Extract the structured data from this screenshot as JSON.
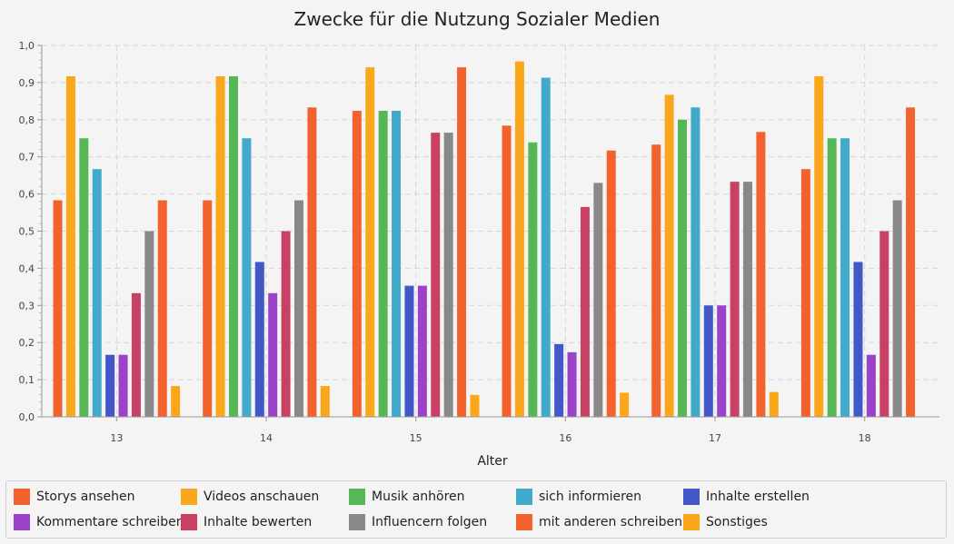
{
  "chart_data": {
    "type": "bar",
    "title": "Zwecke für die Nutzung Sozialer Medien",
    "xlabel": "Alter",
    "ylabel": "",
    "ylim": [
      0,
      1.0
    ],
    "yticks": [
      "0,0",
      "0,1",
      "0,2",
      "0,3",
      "0,4",
      "0,5",
      "0,6",
      "0,7",
      "0,8",
      "0,9",
      "1,0"
    ],
    "categories": [
      "13",
      "14",
      "15",
      "16",
      "17",
      "18"
    ],
    "grid": true,
    "legend_position": "bottom",
    "series": [
      {
        "name": "Storys ansehen",
        "color": "#f3622d",
        "values": [
          0.583,
          0.583,
          0.824,
          0.784,
          0.733,
          0.667
        ]
      },
      {
        "name": "Videos anschauen",
        "color": "#fba71b",
        "values": [
          0.917,
          0.917,
          0.941,
          0.957,
          0.867,
          0.917
        ]
      },
      {
        "name": "Musik anhören",
        "color": "#57b757",
        "values": [
          0.75,
          0.917,
          0.824,
          0.739,
          0.8,
          0.75
        ]
      },
      {
        "name": "sich informieren",
        "color": "#41a9c9",
        "values": [
          0.667,
          0.75,
          0.824,
          0.913,
          0.833,
          0.75
        ]
      },
      {
        "name": "Inhalte erstellen",
        "color": "#4258c9",
        "values": [
          0.167,
          0.417,
          0.353,
          0.196,
          0.3,
          0.417
        ]
      },
      {
        "name": "Kommentare schreiben",
        "color": "#9a42c8",
        "values": [
          0.167,
          0.333,
          0.353,
          0.174,
          0.3,
          0.167
        ]
      },
      {
        "name": "Inhalte bewerten",
        "color": "#c84164",
        "values": [
          0.333,
          0.5,
          0.765,
          0.565,
          0.633,
          0.5
        ]
      },
      {
        "name": "Influencern folgen",
        "color": "#888888",
        "values": [
          0.5,
          0.583,
          0.765,
          0.63,
          0.633,
          0.583
        ]
      },
      {
        "name": "mit anderen schreiben",
        "color": "#f3622d",
        "values": [
          0.583,
          0.833,
          0.941,
          0.717,
          0.767,
          0.833
        ]
      },
      {
        "name": "Sonstiges",
        "color": "#fba71b",
        "values": [
          0.083,
          0.083,
          0.059,
          0.065,
          0.067,
          0.0
        ]
      }
    ]
  }
}
